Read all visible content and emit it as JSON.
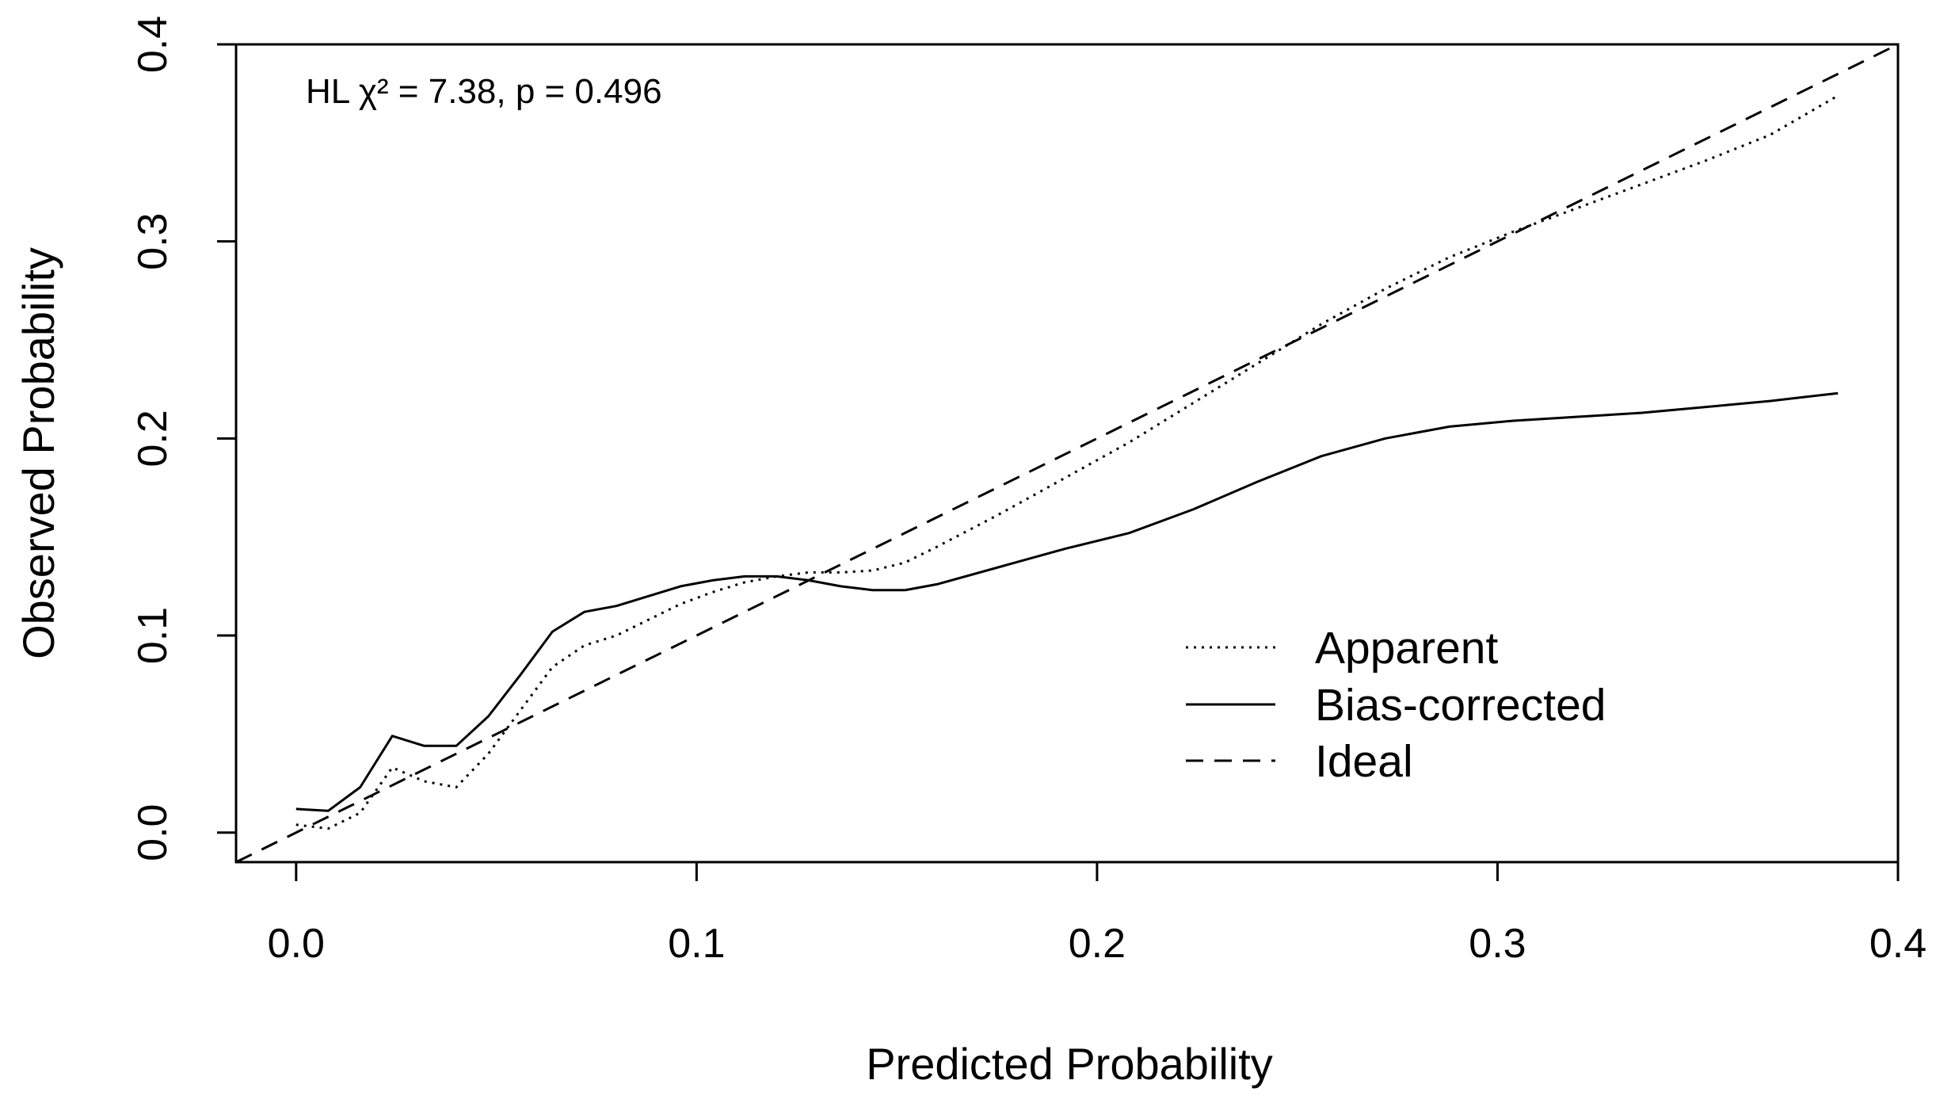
{
  "chart_data": {
    "type": "line",
    "title": "",
    "xlabel": "Predicted Probability",
    "ylabel": "Observed Probability",
    "xlim": [
      -0.015,
      0.4
    ],
    "ylim": [
      -0.015,
      0.4
    ],
    "x_ticks": [
      0.0,
      0.1,
      0.2,
      0.3,
      0.4
    ],
    "x_tick_labels": [
      "0.0",
      "0.1",
      "0.2",
      "0.3",
      "0.4"
    ],
    "y_ticks": [
      0.0,
      0.1,
      0.2,
      0.3,
      0.4
    ],
    "y_tick_labels": [
      "0.0",
      "0.1",
      "0.2",
      "0.3",
      "0.4"
    ],
    "grid": false,
    "legend_position": "bottom-right",
    "annotation": "HL χ² = 7.38, p = 0.496",
    "series": [
      {
        "name": "Apparent",
        "style": "dotted",
        "x": [
          0.0,
          0.008,
          0.016,
          0.024,
          0.032,
          0.04,
          0.048,
          0.056,
          0.064,
          0.072,
          0.08,
          0.088,
          0.096,
          0.104,
          0.112,
          0.12,
          0.128,
          0.136,
          0.144,
          0.152,
          0.16,
          0.176,
          0.192,
          0.208,
          0.224,
          0.24,
          0.256,
          0.272,
          0.288,
          0.304,
          0.32,
          0.336,
          0.352,
          0.368,
          0.385
        ],
        "y": [
          0.004,
          0.002,
          0.01,
          0.033,
          0.026,
          0.023,
          0.04,
          0.062,
          0.084,
          0.095,
          0.1,
          0.108,
          0.116,
          0.122,
          0.127,
          0.13,
          0.132,
          0.132,
          0.133,
          0.137,
          0.145,
          0.162,
          0.18,
          0.198,
          0.218,
          0.238,
          0.258,
          0.276,
          0.292,
          0.305,
          0.317,
          0.329,
          0.341,
          0.354,
          0.374
        ]
      },
      {
        "name": "Bias-corrected",
        "style": "solid",
        "x": [
          0.0,
          0.008,
          0.016,
          0.024,
          0.032,
          0.04,
          0.048,
          0.056,
          0.064,
          0.072,
          0.08,
          0.088,
          0.096,
          0.104,
          0.112,
          0.12,
          0.128,
          0.136,
          0.144,
          0.152,
          0.16,
          0.176,
          0.192,
          0.208,
          0.224,
          0.24,
          0.256,
          0.272,
          0.288,
          0.304,
          0.32,
          0.336,
          0.352,
          0.368,
          0.385
        ],
        "y": [
          0.012,
          0.011,
          0.023,
          0.049,
          0.044,
          0.044,
          0.059,
          0.08,
          0.102,
          0.112,
          0.115,
          0.12,
          0.125,
          0.128,
          0.13,
          0.13,
          0.128,
          0.125,
          0.123,
          0.123,
          0.126,
          0.135,
          0.144,
          0.152,
          0.164,
          0.178,
          0.191,
          0.2,
          0.206,
          0.209,
          0.211,
          0.213,
          0.216,
          0.219,
          0.223
        ]
      },
      {
        "name": "Ideal",
        "style": "dashed",
        "x": [
          -0.015,
          0.4
        ],
        "y": [
          -0.015,
          0.4
        ]
      }
    ]
  }
}
